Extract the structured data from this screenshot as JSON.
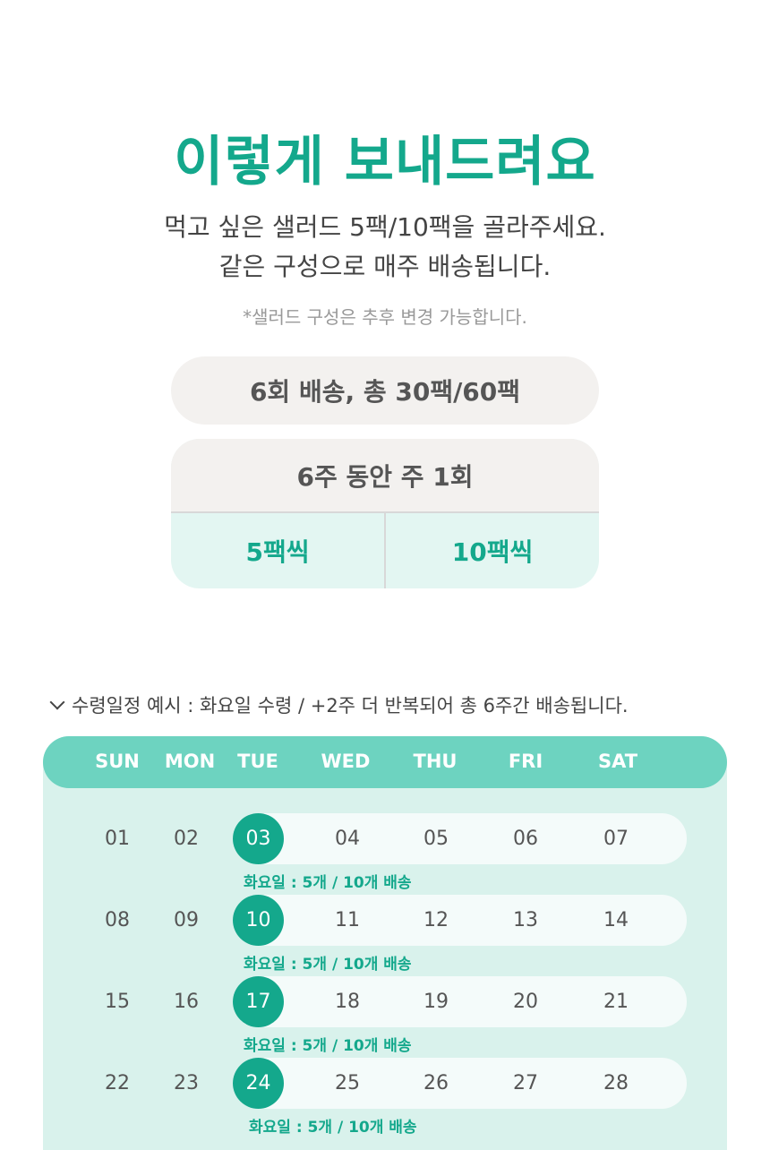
{
  "title": "이렇게 보내드려요",
  "description": [
    "먹고 싶은 샐러드 5팩/10팩을 골라주세요.",
    "같은 구성으로 매주 배송됩니다."
  ],
  "note": "*샐러드 구성은 추후 변경 가능합니다.",
  "summary": "6회 배송, 총 30팩/60팩",
  "plan": {
    "header": "6주 동안 주 1회",
    "options": [
      "5팩씩",
      "10팩씩"
    ]
  },
  "schedule_caption": "수령일정 예시 : 화요일 수령 / +2주 더 반복되어 총 6주간 배송됩니다.",
  "calendar": {
    "weekdays": [
      "SUN",
      "MON",
      "TUE",
      "WED",
      "THU",
      "FRI",
      "SAT"
    ],
    "weeks": [
      [
        "01",
        "02",
        "03",
        "04",
        "05",
        "06",
        "07"
      ],
      [
        "08",
        "09",
        "10",
        "11",
        "12",
        "13",
        "14"
      ],
      [
        "15",
        "16",
        "17",
        "18",
        "19",
        "20",
        "21"
      ],
      [
        "22",
        "23",
        "24",
        "25",
        "26",
        "27",
        "28"
      ]
    ],
    "delivery_label": "화요일 : 5개 / 10개 배송",
    "accent": "#14a88c",
    "header_color": "#6dd3c0",
    "body_color": "#d9f2ec"
  }
}
